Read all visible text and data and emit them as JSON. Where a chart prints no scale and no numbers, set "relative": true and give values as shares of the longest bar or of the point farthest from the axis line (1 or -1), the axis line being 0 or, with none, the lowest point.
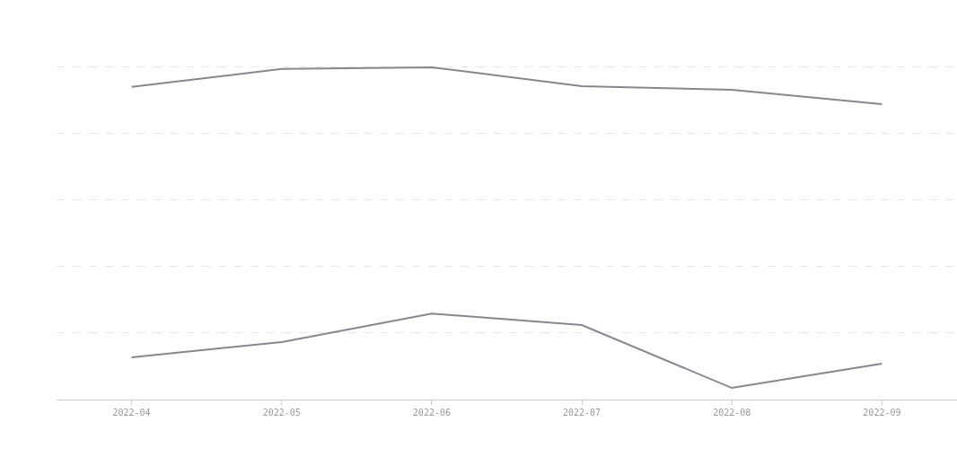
{
  "chart_data": {
    "type": "line",
    "relative": true,
    "categories": [
      "2022-04",
      "2022-05",
      "2022-06",
      "2022-07",
      "2022-08",
      "2022-09"
    ],
    "series": [
      {
        "color": "#8a8590",
        "values": [
          0.941,
          0.995,
          1,
          0.943,
          0.932,
          0.889
        ]
      },
      {
        "color": "#8a8590",
        "values": [
          0.127,
          0.173,
          0.259,
          0.224,
          0.035,
          0.108
        ]
      }
    ],
    "grid": "y",
    "marker": "none",
    "line_style": "solid"
  }
}
